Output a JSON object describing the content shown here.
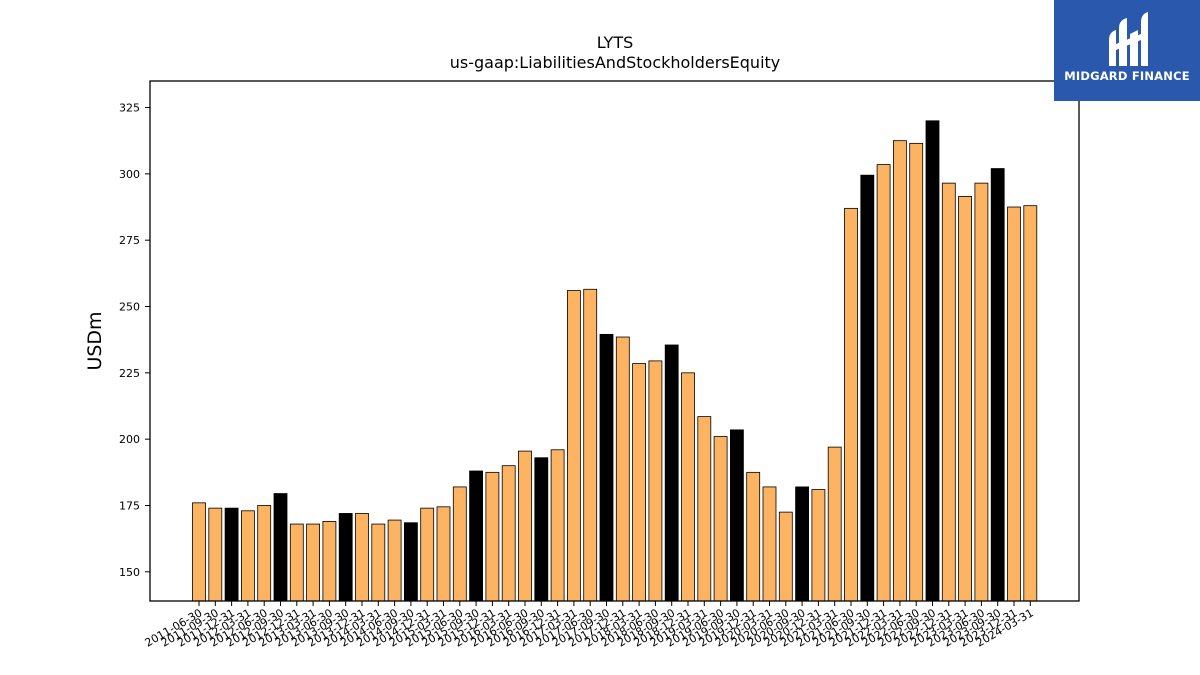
{
  "chart_data": {
    "type": "bar",
    "title": "LYTS",
    "subtitle": "us-gaap:LiabilitiesAndStockholdersEquity",
    "xlabel": "",
    "ylabel": "USDm",
    "ylim": [
      139,
      335
    ],
    "yticks": [
      150,
      175,
      200,
      225,
      250,
      275,
      300,
      325
    ],
    "grid": false,
    "colors": {
      "default": "#fdb462",
      "highlight": "#000000",
      "edge": "#000000"
    },
    "categories": [
      "2011-06-30",
      "2011-09-30",
      "2011-12-31",
      "2012-03-31",
      "2012-06-30",
      "2012-09-30",
      "2012-12-31",
      "2013-03-31",
      "2013-06-30",
      "2013-09-30",
      "2013-12-31",
      "2014-03-31",
      "2014-06-30",
      "2014-09-30",
      "2014-12-31",
      "2015-03-31",
      "2015-06-30",
      "2015-09-30",
      "2015-12-31",
      "2016-03-31",
      "2016-06-30",
      "2016-09-30",
      "2016-12-31",
      "2017-03-31",
      "2017-06-30",
      "2017-09-30",
      "2017-12-31",
      "2018-03-31",
      "2018-06-30",
      "2018-09-30",
      "2018-12-31",
      "2019-03-31",
      "2019-06-30",
      "2019-09-30",
      "2019-12-31",
      "2020-03-31",
      "2020-06-30",
      "2020-09-30",
      "2020-12-31",
      "2021-03-31",
      "2021-06-30",
      "2021-09-30",
      "2021-12-31",
      "2022-03-31",
      "2022-06-30",
      "2022-09-30",
      "2022-12-31",
      "2023-03-31",
      "2023-06-30",
      "2023-09-30",
      "2023-12-31",
      "2024-03-31"
    ],
    "values": [
      176,
      174,
      174,
      173,
      175,
      179.5,
      168,
      168,
      169,
      172,
      172,
      168,
      169.5,
      168.5,
      174,
      174.5,
      182,
      188,
      187.5,
      190,
      195.5,
      193,
      196,
      256,
      256.5,
      239.5,
      238.5,
      228.5,
      229.5,
      235.5,
      225,
      208.5,
      201,
      203.5,
      187.5,
      182,
      172.5,
      182,
      181,
      197,
      287,
      299.5,
      303.5,
      312.5,
      311.5,
      320,
      296.5,
      291.5,
      296.5,
      302,
      287.5,
      288
    ],
    "highlighted": [
      "2011-12-31",
      "2012-09-30",
      "2013-09-30",
      "2014-09-30",
      "2015-09-30",
      "2016-09-30",
      "2017-09-30",
      "2018-09-30",
      "2019-09-30",
      "2020-09-30",
      "2021-09-30",
      "2022-09-30",
      "2023-09-30"
    ]
  },
  "logo": {
    "text": "MIDGARD FINANCE",
    "background": "#2a58ad"
  }
}
